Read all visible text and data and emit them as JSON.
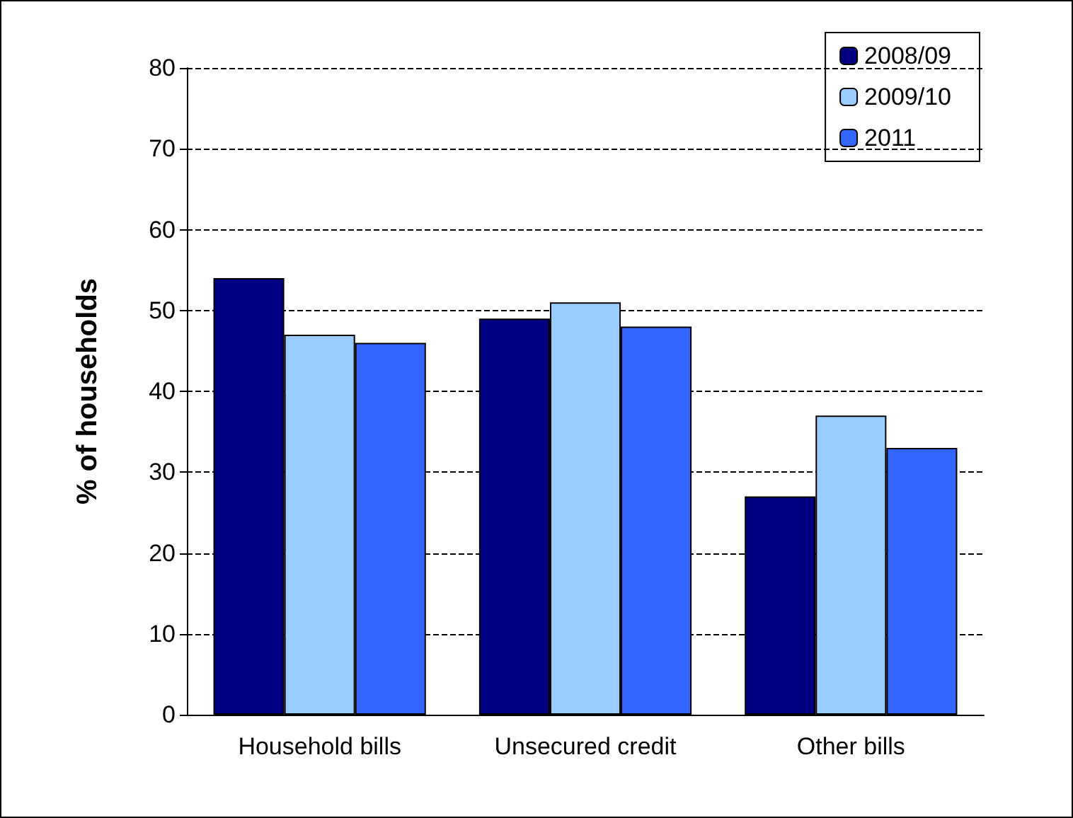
{
  "chart_data": {
    "type": "bar",
    "ylabel": "% of households",
    "categories": [
      "Household bills",
      "Unsecured credit",
      "Other bills"
    ],
    "series": [
      {
        "name": "2008/09",
        "color": "#000080",
        "values": [
          54,
          49,
          27
        ]
      },
      {
        "name": "2009/10",
        "color": "#99ccff",
        "values": [
          47,
          51,
          37
        ]
      },
      {
        "name": "2011",
        "color": "#3366ff",
        "values": [
          46,
          48,
          33
        ]
      }
    ],
    "ylim": [
      0,
      80
    ],
    "yticks": [
      0,
      10,
      20,
      30,
      40,
      50,
      60,
      70,
      80
    ],
    "grid": "y",
    "legend": "top right"
  }
}
